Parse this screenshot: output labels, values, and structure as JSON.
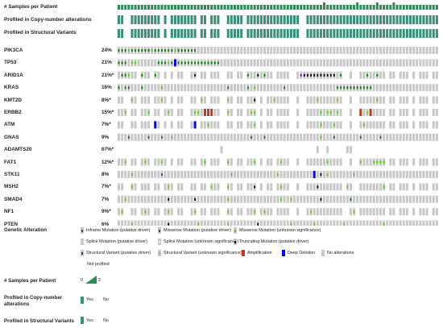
{
  "track_labels": [
    {
      "key": "samples",
      "label": "# Samples per Patient"
    },
    {
      "key": "cna",
      "label": "Profiled in Copy-number alterations"
    },
    {
      "key": "sv",
      "label": "Profiled in Structural Variants"
    }
  ],
  "genes": [
    {
      "name": "PIK3CA",
      "pct": "24%"
    },
    {
      "name": "TP53",
      "pct": "21%"
    },
    {
      "name": "ARID1A",
      "pct": "21%*"
    },
    {
      "name": "KRAS",
      "pct": "16%"
    },
    {
      "name": "KMT2D",
      "pct": "8%*"
    },
    {
      "name": "ERBB2",
      "pct": "15%*"
    },
    {
      "name": "ATM",
      "pct": "7%*"
    },
    {
      "name": "GNAS",
      "pct": "9%"
    },
    {
      "name": "ADAMTS20",
      "pct": "67%*"
    },
    {
      "name": "FAT1",
      "pct": "12%*"
    },
    {
      "name": "STK11",
      "pct": "8%"
    },
    {
      "name": "MSH2",
      "pct": "7%*"
    },
    {
      "name": "SMAD4",
      "pct": "7%"
    },
    {
      "name": "NF1",
      "pct": "9%*"
    },
    {
      "name": "PTEN",
      "pct": "6%"
    }
  ],
  "legend": {
    "genetic_alteration_title": "Genetic Alteration",
    "items": [
      {
        "label": "Inframe Mutation (putative driver)",
        "color": "#993404",
        "style": "inner"
      },
      {
        "label": "Missense Mutation (putative driver)",
        "color": "#008000",
        "style": "inner"
      },
      {
        "label": "Missense Mutation (unknown significance)",
        "color": "#53d400",
        "style": "inner"
      },
      {
        "label": "Splice Mutation (putative driver)",
        "color": "#e5d7a2",
        "style": "inner"
      },
      {
        "label": "Splice Mutation (unknown significance)",
        "color": "#f0e6c3",
        "style": "inner"
      },
      {
        "label": "Truncating Mutation (putative driver)",
        "color": "#000000",
        "style": "inner"
      },
      {
        "label": "Structural Variant (putative driver)",
        "color": "#8b00c9",
        "style": "inner"
      },
      {
        "label": "Structural Variant (unknown significance)",
        "color": "#ce92e8",
        "style": "inner"
      },
      {
        "label": "Amplification",
        "color": "#c0392b",
        "style": "full"
      },
      {
        "label": "Deep Deletion",
        "color": "#0000ff",
        "style": "full"
      },
      {
        "label": "No alterations",
        "color": "#c8c8c8",
        "style": "none"
      },
      {
        "label": "Not profiled",
        "color": "#ffffff",
        "style": "none"
      }
    ],
    "samples_title": "# Samples per Patient",
    "samples_min": "0",
    "samples_max": "2",
    "cna_title": "Profiled in Copy-number alterations",
    "sv_title": "Profiled in Structural Variants",
    "yes_label": "Yes",
    "no_label": "No"
  },
  "colors": {
    "track_green": "#2e8b57",
    "track_teal": "#3a8f7a",
    "cell_gray": "#c8c8c8",
    "missense_driver": "#008000",
    "missense_unknown": "#53d400",
    "truncating": "#000000",
    "inframe": "#993404",
    "amplification": "#c0392b",
    "deep_deletion": "#0000ff",
    "splice": "#e5d7a2",
    "sv_driver": "#8b00c9"
  }
}
